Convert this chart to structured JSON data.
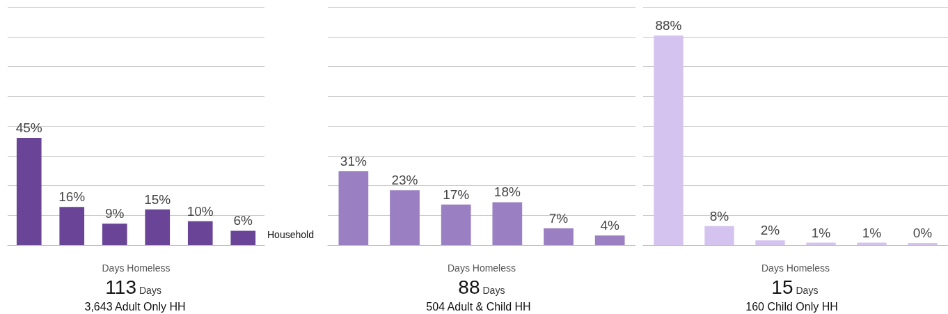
{
  "chart_data": [
    {
      "type": "bar",
      "xlabel": "Days Homeless",
      "categories": [
        null,
        null,
        null,
        null,
        null,
        null
      ],
      "values": [
        45,
        16,
        9,
        15,
        10,
        6
      ],
      "value_labels": [
        "45%",
        "16%",
        "9%",
        "15%",
        "10%",
        "6%"
      ],
      "color": "#6a4496",
      "ylim": [
        0,
        100
      ],
      "yticks": [
        {
          "value": 0,
          "label": null
        },
        {
          "value": 12.5,
          "label": null
        },
        {
          "value": 25,
          "label": null
        },
        {
          "value": 37.5,
          "label": null
        },
        {
          "value": 50,
          "label": null
        },
        {
          "value": 62.5,
          "label": null
        },
        {
          "value": 75,
          "label": null
        },
        {
          "value": 87.5,
          "label": null
        },
        {
          "value": 100,
          "label": null
        }
      ],
      "grid": "y",
      "annotations": [
        "113",
        "Days",
        "3,643 Adult Only HH",
        "Household"
      ]
    },
    {
      "type": "bar",
      "xlabel": "Days Homeless",
      "categories": [
        null,
        null,
        null,
        null,
        null,
        null
      ],
      "values": [
        31,
        23,
        17,
        18,
        7,
        4
      ],
      "value_labels": [
        "31%",
        "23%",
        "17%",
        "18%",
        "7%",
        "4%"
      ],
      "color": "#9a7fc2",
      "ylim": [
        0,
        100
      ],
      "yticks": [
        {
          "value": 0,
          "label": null
        },
        {
          "value": 12.5,
          "label": null
        },
        {
          "value": 25,
          "label": null
        },
        {
          "value": 37.5,
          "label": null
        },
        {
          "value": 50,
          "label": null
        },
        {
          "value": 62.5,
          "label": null
        },
        {
          "value": 75,
          "label": null
        },
        {
          "value": 87.5,
          "label": null
        },
        {
          "value": 100,
          "label": null
        }
      ],
      "grid": "y",
      "annotations": [
        "88",
        "Days",
        "504 Adult & Child HH"
      ]
    },
    {
      "type": "bar",
      "xlabel": "Days Homeless",
      "categories": [
        null,
        null,
        null,
        null,
        null,
        null
      ],
      "values": [
        88,
        8,
        2,
        1,
        1,
        0
      ],
      "value_labels": [
        "88%",
        "8%",
        "2%",
        "1%",
        "1%",
        "0%"
      ],
      "color": "#d5c3ef",
      "ylim": [
        0,
        100
      ],
      "yticks": [
        {
          "value": 0,
          "label": null
        },
        {
          "value": 12.5,
          "label": null
        },
        {
          "value": 25,
          "label": null
        },
        {
          "value": 37.5,
          "label": null
        },
        {
          "value": 50,
          "label": null
        },
        {
          "value": 62.5,
          "label": null
        },
        {
          "value": 75,
          "label": null
        },
        {
          "value": 87.5,
          "label": null
        },
        {
          "value": 100,
          "label": null
        }
      ],
      "grid": "y",
      "annotations": [
        "15",
        "Days",
        "160 Child Only HH"
      ]
    }
  ]
}
